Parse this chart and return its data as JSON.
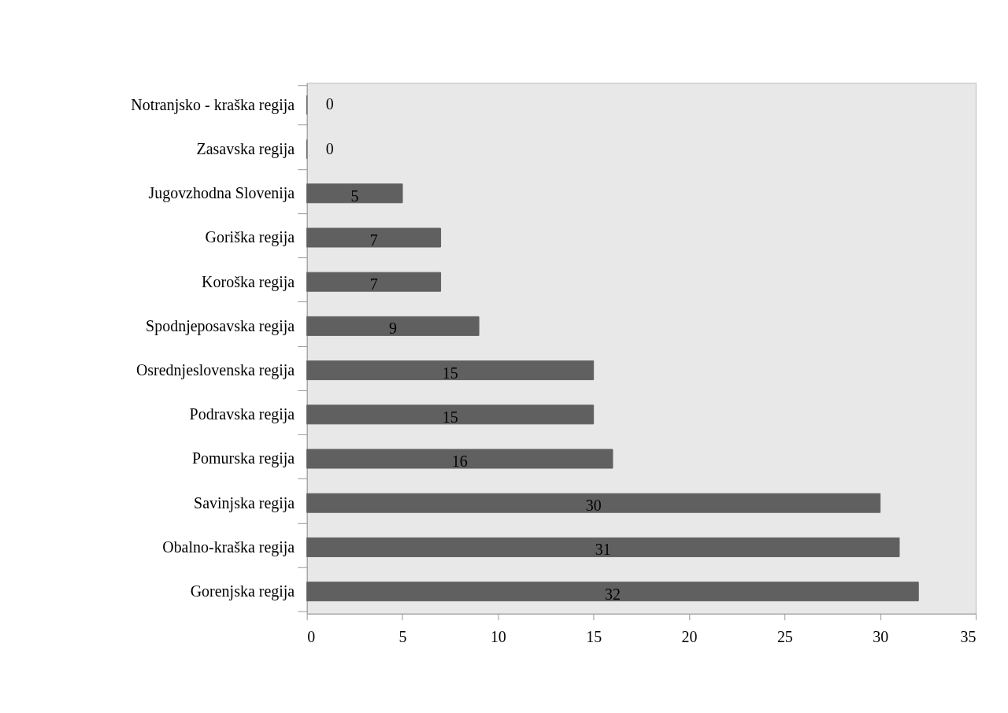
{
  "chart_data": {
    "type": "bar",
    "orientation": "horizontal",
    "categories": [
      "Notranjsko - kraška regija",
      "Zasavska regija",
      "Jugovzhodna Slovenija",
      "Goriška regija",
      "Koroška regija",
      "Spodnjeposavska regija",
      "Osrednjeslovenska regija",
      "Podravska regija",
      "Pomurska regija",
      "Savinjska regija",
      "Obalno-kraška regija",
      "Gorenjska regija"
    ],
    "values": [
      0,
      0,
      5,
      7,
      7,
      9,
      15,
      15,
      16,
      30,
      31,
      32
    ],
    "color": "#606060",
    "data_labels": true,
    "xlim": [
      0,
      35
    ],
    "xticks": [
      0,
      5,
      10,
      15,
      20,
      25,
      30,
      35
    ],
    "grid": false
  }
}
